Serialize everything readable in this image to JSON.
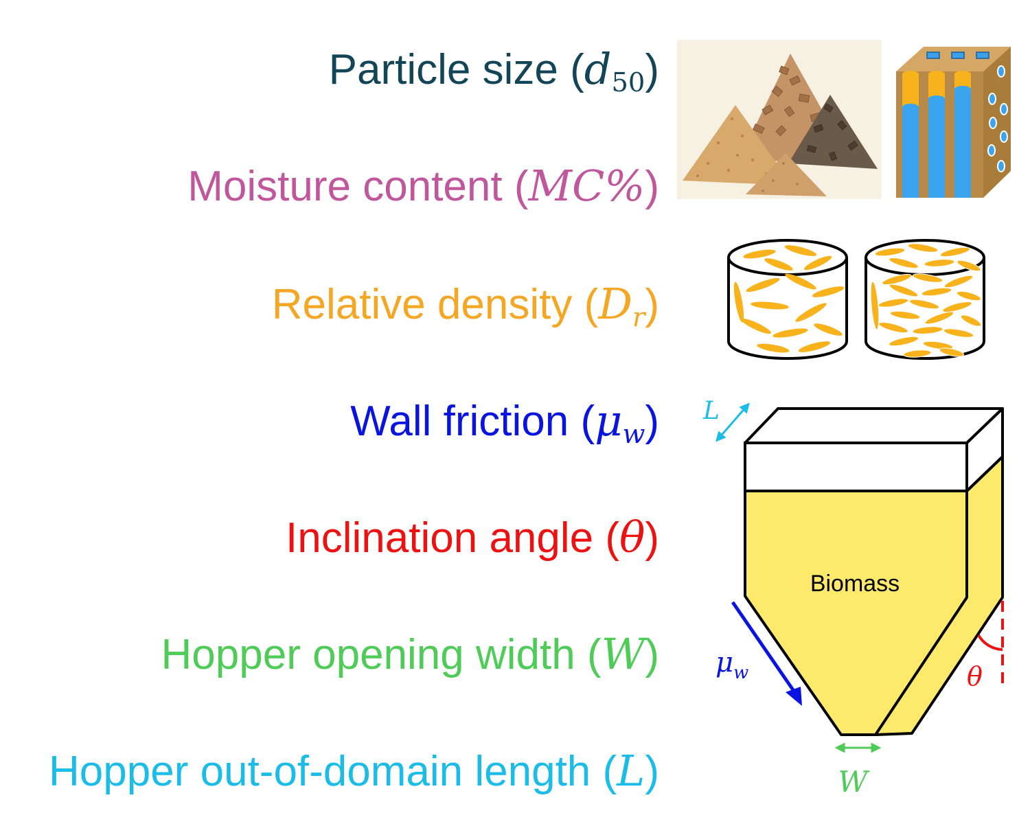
{
  "parameters": [
    {
      "id": "particle-size",
      "label": "Particle size (",
      "symbol": "d",
      "subscript": "50",
      "close": ")",
      "color": "#134559"
    },
    {
      "id": "moisture-content",
      "label": "Moisture content (",
      "symbol": "MC%",
      "subscript": "",
      "close": ")",
      "color": "#c0569c"
    },
    {
      "id": "relative-density",
      "label": "Relative density (",
      "symbol": "D",
      "subscript": "r",
      "close": ")",
      "color": "#f5a623"
    },
    {
      "id": "wall-friction",
      "label": "Wall friction (",
      "symbol": "μ",
      "subscript": "w",
      "close": ")",
      "color": "#0a14e0"
    },
    {
      "id": "inclination-angle",
      "label": "Inclination angle (",
      "symbol": "θ",
      "subscript": "",
      "close": ")",
      "color": "#ee1111"
    },
    {
      "id": "opening-width",
      "label": "Hopper opening width (",
      "symbol": "W",
      "subscript": "",
      "close": ")",
      "color": "#4fcb58"
    },
    {
      "id": "out-of-domain-length",
      "label": "Hopper out-of-domain length (",
      "symbol": "L",
      "subscript": "",
      "close": ")",
      "color": "#1bbde8"
    }
  ],
  "hopper": {
    "material_label": "Biomass",
    "symbols": {
      "length": "L",
      "width": "W",
      "angle": "θ",
      "friction": "μ",
      "friction_sub": "w"
    },
    "colors": {
      "fill": "#fde96c",
      "outline": "#000000",
      "length": "#1bbde8",
      "width": "#4fcb58",
      "angle": "#ee1111",
      "friction": "#0a14e0"
    }
  },
  "icons": {
    "particle_piles": "biomass-piles-illustration",
    "moisture_block": "porous-block-moisture-icon",
    "density_loose": "loose-packing-cylinder-icon",
    "density_dense": "dense-packing-cylinder-icon"
  }
}
